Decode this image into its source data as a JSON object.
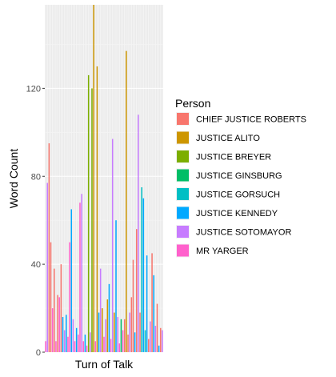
{
  "chart_data": {
    "type": "bar",
    "xlabel": "Turn of Talk",
    "ylabel": "Word Count",
    "ylim": [
      0,
      158
    ],
    "yticks": [
      0,
      40,
      80,
      120
    ],
    "grid": true,
    "background": "#ebebeb",
    "legend": {
      "title": "Person",
      "placement": "right",
      "entries": [
        {
          "name": "CHIEF JUSTICE ROBERTS",
          "color": "#F8766D"
        },
        {
          "name": "JUSTICE ALITO",
          "color": "#CD9600"
        },
        {
          "name": "JUSTICE BREYER",
          "color": "#7CAE00"
        },
        {
          "name": "JUSTICE GINSBURG",
          "color": "#00BE67"
        },
        {
          "name": "JUSTICE GORSUCH",
          "color": "#00BFC4"
        },
        {
          "name": "JUSTICE KENNEDY",
          "color": "#00A9FF"
        },
        {
          "name": "JUSTICE SOTOMAYOR",
          "color": "#C77CFF"
        },
        {
          "name": "MR YARGER",
          "color": "#FF61CC"
        }
      ]
    },
    "series": [
      {
        "name": "CHIEF JUSTICE ROBERTS",
        "turns": [
          2,
          3,
          5,
          7,
          9,
          46,
          48,
          50,
          51,
          53,
          55,
          60,
          62,
          65,
          67
        ],
        "values": [
          95,
          50,
          38,
          26,
          40,
          15,
          8,
          25,
          42,
          56,
          18,
          6,
          45,
          22,
          11
        ]
      },
      {
        "name": "JUSTICE ALITO",
        "turns": [
          28,
          30,
          33,
          36,
          40,
          47
        ],
        "values": [
          158,
          130,
          20,
          24,
          18,
          137
        ]
      },
      {
        "name": "JUSTICE BREYER",
        "turns": [
          25,
          27
        ],
        "values": [
          126,
          120
        ]
      },
      {
        "name": "JUSTICE GINSBURG",
        "turns": [
          44
        ],
        "values": [
          15
        ]
      },
      {
        "name": "JUSTICE GORSUCH",
        "turns": [
          56,
          58
        ],
        "values": [
          75,
          10
        ]
      },
      {
        "name": "JUSTICE KENNEDY",
        "turns": [
          10,
          12,
          15,
          18,
          23,
          31,
          37,
          41,
          52,
          57,
          59,
          63,
          66
        ],
        "values": [
          16,
          17,
          65,
          11,
          8,
          18,
          31,
          60,
          9,
          70,
          44,
          35,
          3
        ]
      },
      {
        "name": "JUSTICE SOTOMAYOR",
        "turns": [
          1,
          11,
          16,
          21,
          26,
          32,
          35,
          39,
          42,
          49,
          54,
          61,
          64,
          68
        ],
        "values": [
          77,
          10,
          15,
          72,
          9,
          38,
          15,
          97,
          16,
          18,
          108,
          14,
          12,
          10
        ]
      },
      {
        "name": "MR YARGER",
        "turns": [
          0,
          4,
          6,
          8,
          13,
          14,
          17,
          19,
          20,
          22,
          24,
          29,
          34,
          38,
          43,
          45
        ],
        "values": [
          5,
          20,
          5,
          25,
          7,
          50,
          5,
          8,
          68,
          5,
          3,
          5,
          7,
          6,
          4,
          10
        ]
      }
    ]
  }
}
